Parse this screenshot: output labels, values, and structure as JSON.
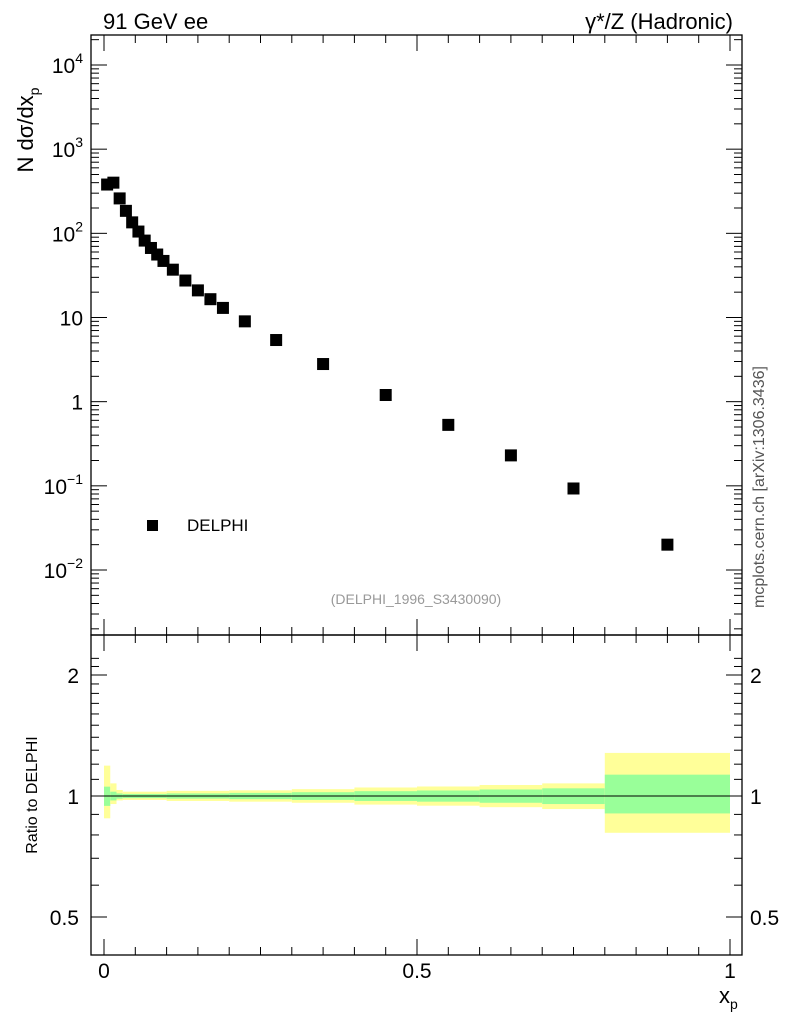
{
  "header": {
    "left": "91 GeV ee",
    "right": "γ*/Z (Hadronic)"
  },
  "side_note": "mcplots.cern.ch [arXiv:1306.3436]",
  "analysis_tag": "(DELPHI_1996_S3430090)",
  "legend": {
    "label": "DELPHI"
  },
  "colors": {
    "inner_band": "#99ff99",
    "outer_band": "#ffff99",
    "marker": "#000000"
  },
  "chart_data": [
    {
      "type": "scatter",
      "panel": "main",
      "ylabel": "N dσ/dx",
      "ylabel_sub": "p",
      "yscale": "log",
      "ylim": [
        0.002,
        22000
      ],
      "xlim": [
        -0.02,
        1.02
      ],
      "y_ticks": [
        {
          "base": "10",
          "exp": "4"
        },
        {
          "base": "10",
          "exp": "3"
        },
        {
          "base": "10",
          "exp": "2"
        },
        {
          "base": "10",
          "exp": ""
        },
        {
          "base": "1",
          "exp": ""
        },
        {
          "base": "10",
          "exp": "−1"
        },
        {
          "base": "10",
          "exp": "−2"
        }
      ],
      "series": [
        {
          "name": "DELPHI",
          "marker": "square",
          "x": [
            0.005,
            0.015,
            0.025,
            0.035,
            0.045,
            0.055,
            0.065,
            0.075,
            0.085,
            0.095,
            0.11,
            0.13,
            0.15,
            0.17,
            0.19,
            0.225,
            0.275,
            0.35,
            0.45,
            0.55,
            0.65,
            0.75,
            0.9
          ],
          "y": [
            380,
            400,
            260,
            185,
            135,
            105,
            82,
            67,
            56,
            47,
            37,
            27.5,
            21,
            16.5,
            13,
            9,
            5.4,
            2.8,
            1.2,
            0.53,
            0.23,
            0.093,
            0.02
          ]
        }
      ]
    },
    {
      "type": "area",
      "panel": "ratio",
      "ylabel": "Ratio to DELPHI",
      "ylim": [
        0.3,
        2.3
      ],
      "xlim": [
        -0.02,
        1.02
      ],
      "x_ticks": [
        "0",
        "0.5",
        "1"
      ],
      "y_ticks": [
        "0.5",
        "1",
        "2"
      ],
      "xlabel": "x",
      "xlabel_sub": "p",
      "bins": [
        {
          "x": [
            0.0,
            0.01
          ],
          "inner": [
            0.945,
            1.055
          ],
          "outer": [
            0.88,
            1.19
          ]
        },
        {
          "x": [
            0.01,
            0.02
          ],
          "inner": [
            0.975,
            1.025
          ],
          "outer": [
            0.955,
            1.075
          ]
        },
        {
          "x": [
            0.02,
            0.03
          ],
          "inner": [
            0.985,
            1.015
          ],
          "outer": [
            0.975,
            1.035
          ]
        },
        {
          "x": [
            0.03,
            0.1
          ],
          "inner": [
            0.988,
            1.012
          ],
          "outer": [
            0.978,
            1.025
          ]
        },
        {
          "x": [
            0.1,
            0.2
          ],
          "inner": [
            0.985,
            1.015
          ],
          "outer": [
            0.972,
            1.03
          ]
        },
        {
          "x": [
            0.2,
            0.3
          ],
          "inner": [
            0.982,
            1.018
          ],
          "outer": [
            0.968,
            1.033
          ]
        },
        {
          "x": [
            0.3,
            0.4
          ],
          "inner": [
            0.978,
            1.022
          ],
          "outer": [
            0.962,
            1.04
          ]
        },
        {
          "x": [
            0.4,
            0.5
          ],
          "inner": [
            0.972,
            1.028
          ],
          "outer": [
            0.952,
            1.05
          ]
        },
        {
          "x": [
            0.5,
            0.6
          ],
          "inner": [
            0.968,
            1.032
          ],
          "outer": [
            0.946,
            1.056
          ]
        },
        {
          "x": [
            0.6,
            0.7
          ],
          "inner": [
            0.962,
            1.038
          ],
          "outer": [
            0.938,
            1.065
          ]
        },
        {
          "x": [
            0.7,
            0.8
          ],
          "inner": [
            0.955,
            1.045
          ],
          "outer": [
            0.928,
            1.075
          ]
        },
        {
          "x": [
            0.8,
            1.0
          ],
          "inner": [
            0.905,
            1.13
          ],
          "outer": [
            0.81,
            1.28
          ]
        }
      ],
      "reference_line": 1
    }
  ]
}
